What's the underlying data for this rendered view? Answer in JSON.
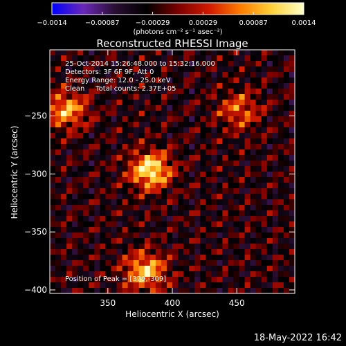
{
  "chart_data": {
    "type": "heatmap",
    "title": "Reconstructed RHESSI Image",
    "xlabel": "Heliocentric X (arcsec)",
    "ylabel": "Heliocentric Y (arcsec)",
    "xlim": [
      305,
      495
    ],
    "ylim": [
      -403,
      -193
    ],
    "x_ticks": [
      "350",
      "400",
      "450"
    ],
    "x_tick_values": [
      350,
      400,
      450
    ],
    "y_ticks": [
      "−250",
      "−300",
      "−350",
      "−400"
    ],
    "y_tick_values": [
      -250,
      -300,
      -350,
      -400
    ],
    "colorbar": {
      "tick_labels": [
        "−0.0014",
        "−0.00087",
        "−0.00029",
        "0.00029",
        "0.00087",
        "0.0014"
      ],
      "range": [
        -0.0014,
        0.0014
      ],
      "unit_label": "(photons cm⁻² s⁻¹ asec⁻²)",
      "colors": [
        "#0000ff",
        "#6a28b8",
        "#2a0e33",
        "#000000",
        "#7a0000",
        "#d21a00",
        "#ff7d00",
        "#ffd23a",
        "#ffffc8"
      ]
    },
    "sources": [
      {
        "x": 383,
        "y": -297,
        "relative_intensity": 1.0
      },
      {
        "x": 379,
        "y": -384,
        "relative_intensity": 0.85
      },
      {
        "x": 318,
        "y": -245,
        "relative_intensity": 0.75
      },
      {
        "x": 452,
        "y": -245,
        "relative_intensity": 0.55
      }
    ],
    "annotations": [
      "25-Oct-2014 15:26:48.000 to 15:32:16.000",
      "Detectors: 3F 6F 9F, Att 0",
      "Energy Range: 12.0 - 25.0 keV",
      "Clean     Total counts: 2.37E+05"
    ],
    "peak_label": "Position of Peak = [379,-309]"
  },
  "footer": {
    "timestamp": "18-May-2022 16:42"
  }
}
